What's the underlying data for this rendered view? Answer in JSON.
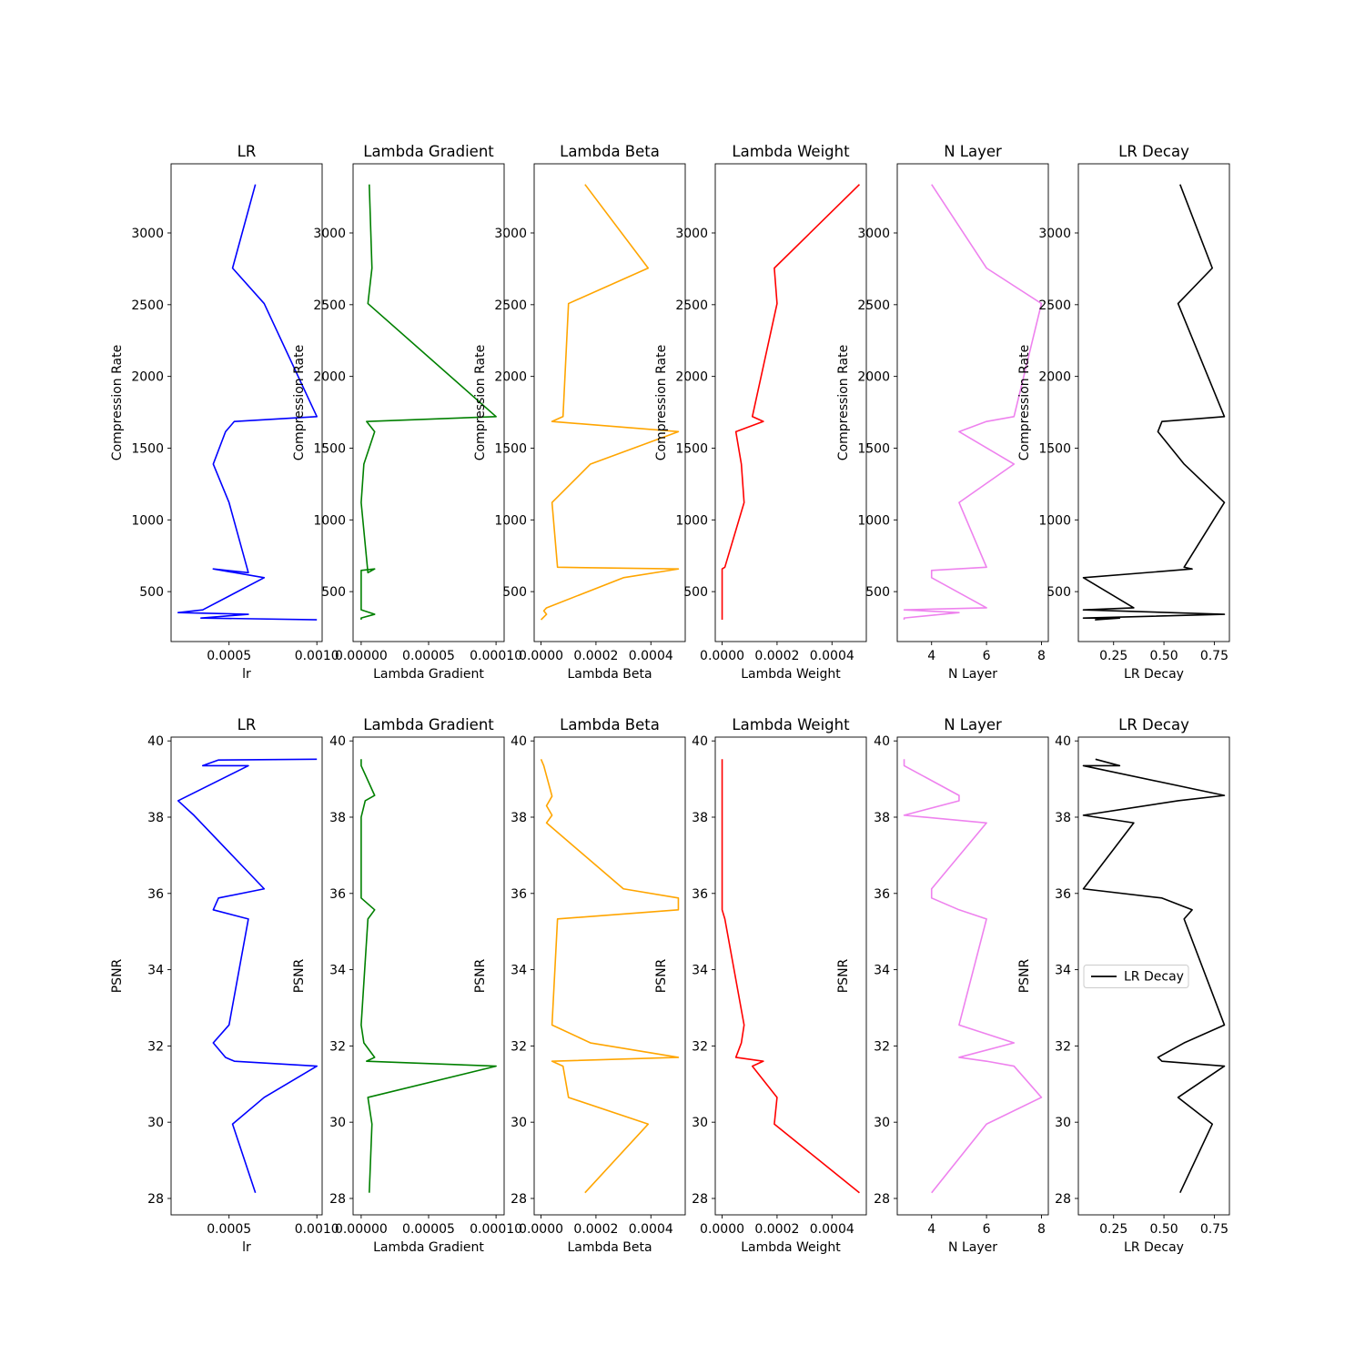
{
  "chart_data": [
    {
      "type": "line",
      "title": "LR",
      "xlabel": "lr",
      "ylabel": "Compression Rate",
      "color": "#0000ff",
      "xlim": [
        0.00017,
        0.00103
      ],
      "ylim": [
        152,
        3482
      ],
      "xticks": [
        0.0005,
        0.001
      ],
      "xticklabels": [
        "0.0005",
        "0.0010"
      ],
      "yticks": [
        500,
        1000,
        1500,
        2000,
        2500,
        3000
      ],
      "yticklabels": [
        "500",
        "1000",
        "1500",
        "2000",
        "2500",
        "3000"
      ],
      "x": [
        0.00065,
        0.00052,
        0.0007,
        0.001,
        0.00053,
        0.00048,
        0.00041,
        0.0005,
        0.00061,
        0.00041,
        0.0007,
        0.00035,
        0.00021,
        0.00061,
        0.00034,
        0.001
      ],
      "y": [
        3338,
        2755,
        2508,
        1720,
        1686,
        1615,
        1389,
        1121,
        632,
        658,
        597,
        373,
        354,
        342,
        316,
        304
      ],
      "legend": ""
    },
    {
      "type": "line",
      "title": "Lambda Gradient",
      "xlabel": "Lambda Gradient",
      "ylabel": "Compression Rate",
      "color": "#008000",
      "xlim": [
        -6e-06,
        0.000106
      ],
      "ylim": [
        152,
        3482
      ],
      "xticks": [
        0,
        5e-05,
        0.0001
      ],
      "xticklabels": [
        "0.00000",
        "0.00005",
        "0.00010"
      ],
      "yticks": [
        500,
        1000,
        1500,
        2000,
        2500,
        3000
      ],
      "yticklabels": [
        "500",
        "1000",
        "1500",
        "2000",
        "2500",
        "3000"
      ],
      "x": [
        6e-06,
        8e-06,
        5e-06,
        0.0001,
        4e-06,
        1e-05,
        2e-06,
        0.0,
        5e-06,
        1e-05,
        0.0,
        0.0,
        1e-05,
        0.0,
        0.0
      ],
      "y": [
        3338,
        2755,
        2508,
        1720,
        1686,
        1615,
        1389,
        1121,
        632,
        658,
        648,
        373,
        342,
        316,
        304
      ],
      "legend": ""
    },
    {
      "type": "line",
      "title": "Lambda Beta",
      "xlabel": "Lambda Beta",
      "ylabel": "Compression Rate",
      "color": "#ffa500",
      "xlim": [
        -2.5e-05,
        0.000525
      ],
      "ylim": [
        152,
        3482
      ],
      "xticks": [
        0,
        0.0002,
        0.0004
      ],
      "xticklabels": [
        "0.0000",
        "0.0002",
        "0.0004"
      ],
      "yticks": [
        500,
        1000,
        1500,
        2000,
        2500,
        3000
      ],
      "yticklabels": [
        "500",
        "1000",
        "1500",
        "2000",
        "2500",
        "3000"
      ],
      "x": [
        0.00016,
        0.00039,
        0.0001,
        8e-05,
        4e-05,
        0.0005,
        0.00018,
        4e-05,
        6e-05,
        0.0005,
        0.0003,
        2e-05,
        1e-05,
        2e-05,
        0.0
      ],
      "y": [
        3338,
        2755,
        2508,
        1720,
        1686,
        1615,
        1389,
        1121,
        670,
        658,
        597,
        387,
        366,
        342,
        304
      ],
      "legend": ""
    },
    {
      "type": "line",
      "title": "Lambda Weight",
      "xlabel": "Lambda Weight",
      "ylabel": "Compression Rate",
      "color": "#ff0000",
      "xlim": [
        -2.5e-05,
        0.000525
      ],
      "ylim": [
        152,
        3482
      ],
      "xticks": [
        0,
        0.0002,
        0.0004
      ],
      "xticklabels": [
        "0.0000",
        "0.0002",
        "0.0004"
      ],
      "yticks": [
        500,
        1000,
        1500,
        2000,
        2500,
        3000
      ],
      "yticklabels": [
        "500",
        "1000",
        "1500",
        "2000",
        "2500",
        "3000"
      ],
      "x": [
        0.0005,
        0.00019,
        0.0002,
        0.00011,
        0.00015,
        5e-05,
        7e-05,
        8e-05,
        1e-05,
        0.0,
        0.0,
        0.0,
        0.0
      ],
      "y": [
        3338,
        2755,
        2508,
        1720,
        1686,
        1615,
        1389,
        1121,
        670,
        658,
        387,
        342,
        304
      ],
      "legend": ""
    },
    {
      "type": "line",
      "title": "N Layer",
      "xlabel": "N Layer",
      "ylabel": "Compression Rate",
      "color": "#ee82ee",
      "xlim": [
        2.75,
        8.25
      ],
      "ylim": [
        152,
        3482
      ],
      "xticks": [
        4,
        6,
        8
      ],
      "xticklabels": [
        "4",
        "6",
        "8"
      ],
      "yticks": [
        500,
        1000,
        1500,
        2000,
        2500,
        3000
      ],
      "yticklabels": [
        "500",
        "1000",
        "1500",
        "2000",
        "2500",
        "3000"
      ],
      "x": [
        4,
        6,
        8,
        7,
        6,
        5,
        7,
        5,
        6,
        4,
        4,
        6,
        3,
        5,
        3,
        3
      ],
      "y": [
        3338,
        2755,
        2508,
        1720,
        1686,
        1615,
        1389,
        1121,
        670,
        648,
        597,
        387,
        373,
        354,
        316,
        304
      ],
      "legend": ""
    },
    {
      "type": "line",
      "title": "LR Decay",
      "xlabel": "LR Decay",
      "ylabel": "Compression Rate",
      "color": "#000000",
      "xlim": [
        0.075,
        0.825
      ],
      "ylim": [
        152,
        3482
      ],
      "xticks": [
        0.25,
        0.5,
        0.75
      ],
      "xticklabels": [
        "0.25",
        "0.50",
        "0.75"
      ],
      "yticks": [
        500,
        1000,
        1500,
        2000,
        2500,
        3000
      ],
      "yticklabels": [
        "500",
        "1000",
        "1500",
        "2000",
        "2500",
        "3000"
      ],
      "x": [
        0.58,
        0.74,
        0.57,
        0.8,
        0.49,
        0.47,
        0.6,
        0.8,
        0.6,
        0.64,
        0.1,
        0.35,
        0.1,
        0.8,
        0.1,
        0.28,
        0.16,
        0.2
      ],
      "y": [
        3338,
        2755,
        2508,
        1720,
        1686,
        1615,
        1389,
        1121,
        670,
        658,
        597,
        387,
        373,
        342,
        316,
        316,
        304,
        310
      ],
      "legend": ""
    },
    {
      "type": "line",
      "title": "LR",
      "xlabel": "lr",
      "ylabel": "PSNR",
      "color": "#0000ff",
      "xlim": [
        0.00017,
        0.00103
      ],
      "ylim": [
        27.57,
        40.1
      ],
      "xticks": [
        0.0005,
        0.001
      ],
      "xticklabels": [
        "0.0005",
        "0.0010"
      ],
      "yticks": [
        28,
        30,
        32,
        34,
        36,
        38,
        40
      ],
      "yticklabels": [
        "28",
        "30",
        "32",
        "34",
        "36",
        "38",
        "40"
      ],
      "x": [
        0.00065,
        0.00052,
        0.0007,
        0.001,
        0.00053,
        0.00048,
        0.00041,
        0.0005,
        0.00061,
        0.00041,
        0.00044,
        0.0007,
        0.0003,
        0.00021,
        0.00061,
        0.00035,
        0.00044,
        0.001
      ],
      "y": [
        28.15,
        29.95,
        30.65,
        31.47,
        31.6,
        31.7,
        32.08,
        32.55,
        35.33,
        35.57,
        35.88,
        36.12,
        38.05,
        38.43,
        39.35,
        39.35,
        39.5,
        39.52
      ],
      "legend": ""
    },
    {
      "type": "line",
      "title": "Lambda Gradient",
      "xlabel": "Lambda Gradient",
      "ylabel": "PSNR",
      "color": "#008000",
      "xlim": [
        -6e-06,
        0.000106
      ],
      "ylim": [
        27.57,
        40.1
      ],
      "xticks": [
        0,
        5e-05,
        0.0001
      ],
      "xticklabels": [
        "0.00000",
        "0.00005",
        "0.00010"
      ],
      "yticks": [
        28,
        30,
        32,
        34,
        36,
        38,
        40
      ],
      "yticklabels": [
        "28",
        "30",
        "32",
        "34",
        "36",
        "38",
        "40"
      ],
      "x": [
        6e-06,
        8e-06,
        5e-06,
        0.0001,
        4e-06,
        1e-05,
        2e-06,
        0.0,
        5e-06,
        1e-05,
        0.0,
        0.0,
        3e-06,
        1e-05,
        0.0,
        0.0
      ],
      "y": [
        28.15,
        29.95,
        30.65,
        31.47,
        31.6,
        31.7,
        32.08,
        32.55,
        35.33,
        35.57,
        35.88,
        38.0,
        38.43,
        38.57,
        39.35,
        39.52
      ],
      "legend": ""
    },
    {
      "type": "line",
      "title": "Lambda Beta",
      "xlabel": "Lambda Beta",
      "ylabel": "PSNR",
      "color": "#ffa500",
      "xlim": [
        -2.5e-05,
        0.000525
      ],
      "ylim": [
        27.57,
        40.1
      ],
      "xticks": [
        0,
        0.0002,
        0.0004
      ],
      "xticklabels": [
        "0.0000",
        "0.0002",
        "0.0004"
      ],
      "yticks": [
        28,
        30,
        32,
        34,
        36,
        38,
        40
      ],
      "yticklabels": [
        "28",
        "30",
        "32",
        "34",
        "36",
        "38",
        "40"
      ],
      "x": [
        0.00016,
        0.00039,
        0.0001,
        8e-05,
        4e-05,
        0.0005,
        0.00018,
        4e-05,
        6e-05,
        0.0005,
        0.0005,
        0.0003,
        2e-05,
        4e-05,
        2e-05,
        4e-05,
        1e-05,
        0.0
      ],
      "y": [
        28.15,
        29.95,
        30.65,
        31.47,
        31.6,
        31.7,
        32.08,
        32.55,
        35.33,
        35.57,
        35.88,
        36.12,
        37.85,
        38.05,
        38.3,
        38.55,
        39.35,
        39.52
      ],
      "legend": ""
    },
    {
      "type": "line",
      "title": "Lambda Weight",
      "xlabel": "Lambda Weight",
      "ylabel": "PSNR",
      "color": "#ff0000",
      "xlim": [
        -2.5e-05,
        0.000525
      ],
      "ylim": [
        27.57,
        40.1
      ],
      "xticks": [
        0,
        0.0002,
        0.0004
      ],
      "xticklabels": [
        "0.0000",
        "0.0002",
        "0.0004"
      ],
      "yticks": [
        28,
        30,
        32,
        34,
        36,
        38,
        40
      ],
      "yticklabels": [
        "28",
        "30",
        "32",
        "34",
        "36",
        "38",
        "40"
      ],
      "x": [
        0.0005,
        0.00019,
        0.0002,
        0.00011,
        0.00015,
        5e-05,
        7e-05,
        8e-05,
        1e-05,
        0.0,
        0.0,
        0.0,
        0.0
      ],
      "y": [
        28.15,
        29.95,
        30.65,
        31.47,
        31.6,
        31.7,
        32.08,
        32.55,
        35.33,
        35.57,
        38.0,
        38.43,
        39.52
      ],
      "legend": ""
    },
    {
      "type": "line",
      "title": "N Layer",
      "xlabel": "N Layer",
      "ylabel": "PSNR",
      "color": "#ee82ee",
      "xlim": [
        2.75,
        8.25
      ],
      "ylim": [
        27.57,
        40.1
      ],
      "xticks": [
        4,
        6,
        8
      ],
      "xticklabels": [
        "4",
        "6",
        "8"
      ],
      "yticks": [
        28,
        30,
        32,
        34,
        36,
        38,
        40
      ],
      "yticklabels": [
        "28",
        "30",
        "32",
        "34",
        "36",
        "38",
        "40"
      ],
      "x": [
        4,
        6,
        8,
        7,
        6,
        5,
        7,
        5,
        6,
        5,
        4,
        4,
        6,
        3,
        5,
        5,
        3,
        3
      ],
      "y": [
        28.15,
        29.95,
        30.65,
        31.47,
        31.6,
        31.7,
        32.08,
        32.55,
        35.33,
        35.57,
        35.88,
        36.12,
        37.85,
        38.05,
        38.43,
        38.57,
        39.35,
        39.52
      ],
      "legend": ""
    },
    {
      "type": "line",
      "title": "LR Decay",
      "xlabel": "LR Decay",
      "ylabel": "PSNR",
      "color": "#000000",
      "xlim": [
        0.075,
        0.825
      ],
      "ylim": [
        27.57,
        40.1
      ],
      "xticks": [
        0.25,
        0.5,
        0.75
      ],
      "xticklabels": [
        "0.25",
        "0.50",
        "0.75"
      ],
      "yticks": [
        28,
        30,
        32,
        34,
        36,
        38,
        40
      ],
      "yticklabels": [
        "28",
        "30",
        "32",
        "34",
        "36",
        "38",
        "40"
      ],
      "x": [
        0.58,
        0.74,
        0.57,
        0.8,
        0.49,
        0.47,
        0.6,
        0.8,
        0.6,
        0.64,
        0.49,
        0.1,
        0.35,
        0.1,
        0.57,
        0.8,
        0.1,
        0.28,
        0.16
      ],
      "y": [
        28.15,
        29.95,
        30.65,
        31.47,
        31.6,
        31.7,
        32.08,
        32.55,
        35.33,
        35.57,
        35.88,
        36.12,
        37.85,
        38.05,
        38.43,
        38.57,
        39.35,
        39.35,
        39.52
      ],
      "legend": "LR Decay",
      "legend_position": "center-left"
    }
  ]
}
